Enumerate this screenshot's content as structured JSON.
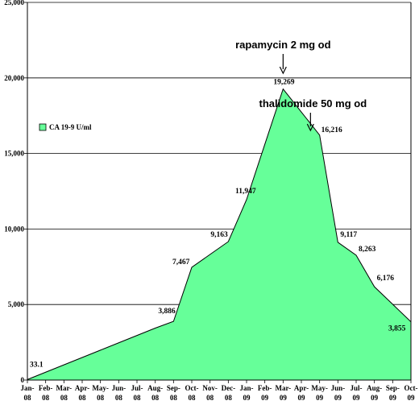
{
  "chart_data": {
    "type": "area",
    "title": "",
    "xlabel": "",
    "ylabel": "",
    "categories": [
      "Jan-08",
      "Feb-08",
      "Mar-08",
      "Apr-08",
      "May-08",
      "Jun-08",
      "Jul-08",
      "Aug-08",
      "Sep-08",
      "Oct-08",
      "Nov-08",
      "Dec-08",
      "Jan-09",
      "Feb-09",
      "Mar-09",
      "Apr-09",
      "May-09",
      "Jun-09",
      "Jul-09",
      "Aug-09",
      "Sep-09",
      "Oct-09"
    ],
    "series": [
      {
        "name": "CA 19-9 U/ml",
        "values": [
          33.1,
          519.7,
          1006.3,
          1492.9,
          1979.5,
          2466.1,
          2952.7,
          3439.3,
          3886,
          7467,
          8315,
          9163,
          11947,
          15608,
          19269,
          17743,
          16216,
          9117,
          8263,
          6176,
          5016,
          3855
        ],
        "color": "#66ff99"
      }
    ],
    "data_labels": [
      {
        "index": 0,
        "text": "33.1"
      },
      {
        "index": 8,
        "text": "3,886"
      },
      {
        "index": 9,
        "text": "7,467"
      },
      {
        "index": 11,
        "text": "9,163"
      },
      {
        "index": 12,
        "text": "11,947"
      },
      {
        "index": 14,
        "text": "19,269"
      },
      {
        "index": 16,
        "text": "16,216"
      },
      {
        "index": 17,
        "text": "9,117"
      },
      {
        "index": 18,
        "text": "8,263"
      },
      {
        "index": 19,
        "text": "6,176"
      },
      {
        "index": 21,
        "text": "3,855"
      }
    ],
    "yticks": [
      "0",
      "5,000",
      "10,000",
      "15,000",
      "20,000",
      "25,000"
    ],
    "ylim": [
      0,
      25000
    ],
    "grid": true,
    "legend": {
      "placement": "left",
      "label": "CA 19-9 U/ml"
    },
    "annotations": [
      {
        "text": "rapamycin 2 mg od",
        "index": 14
      },
      {
        "text": "thalidomide 50 mg od",
        "index": 15.5
      }
    ]
  }
}
